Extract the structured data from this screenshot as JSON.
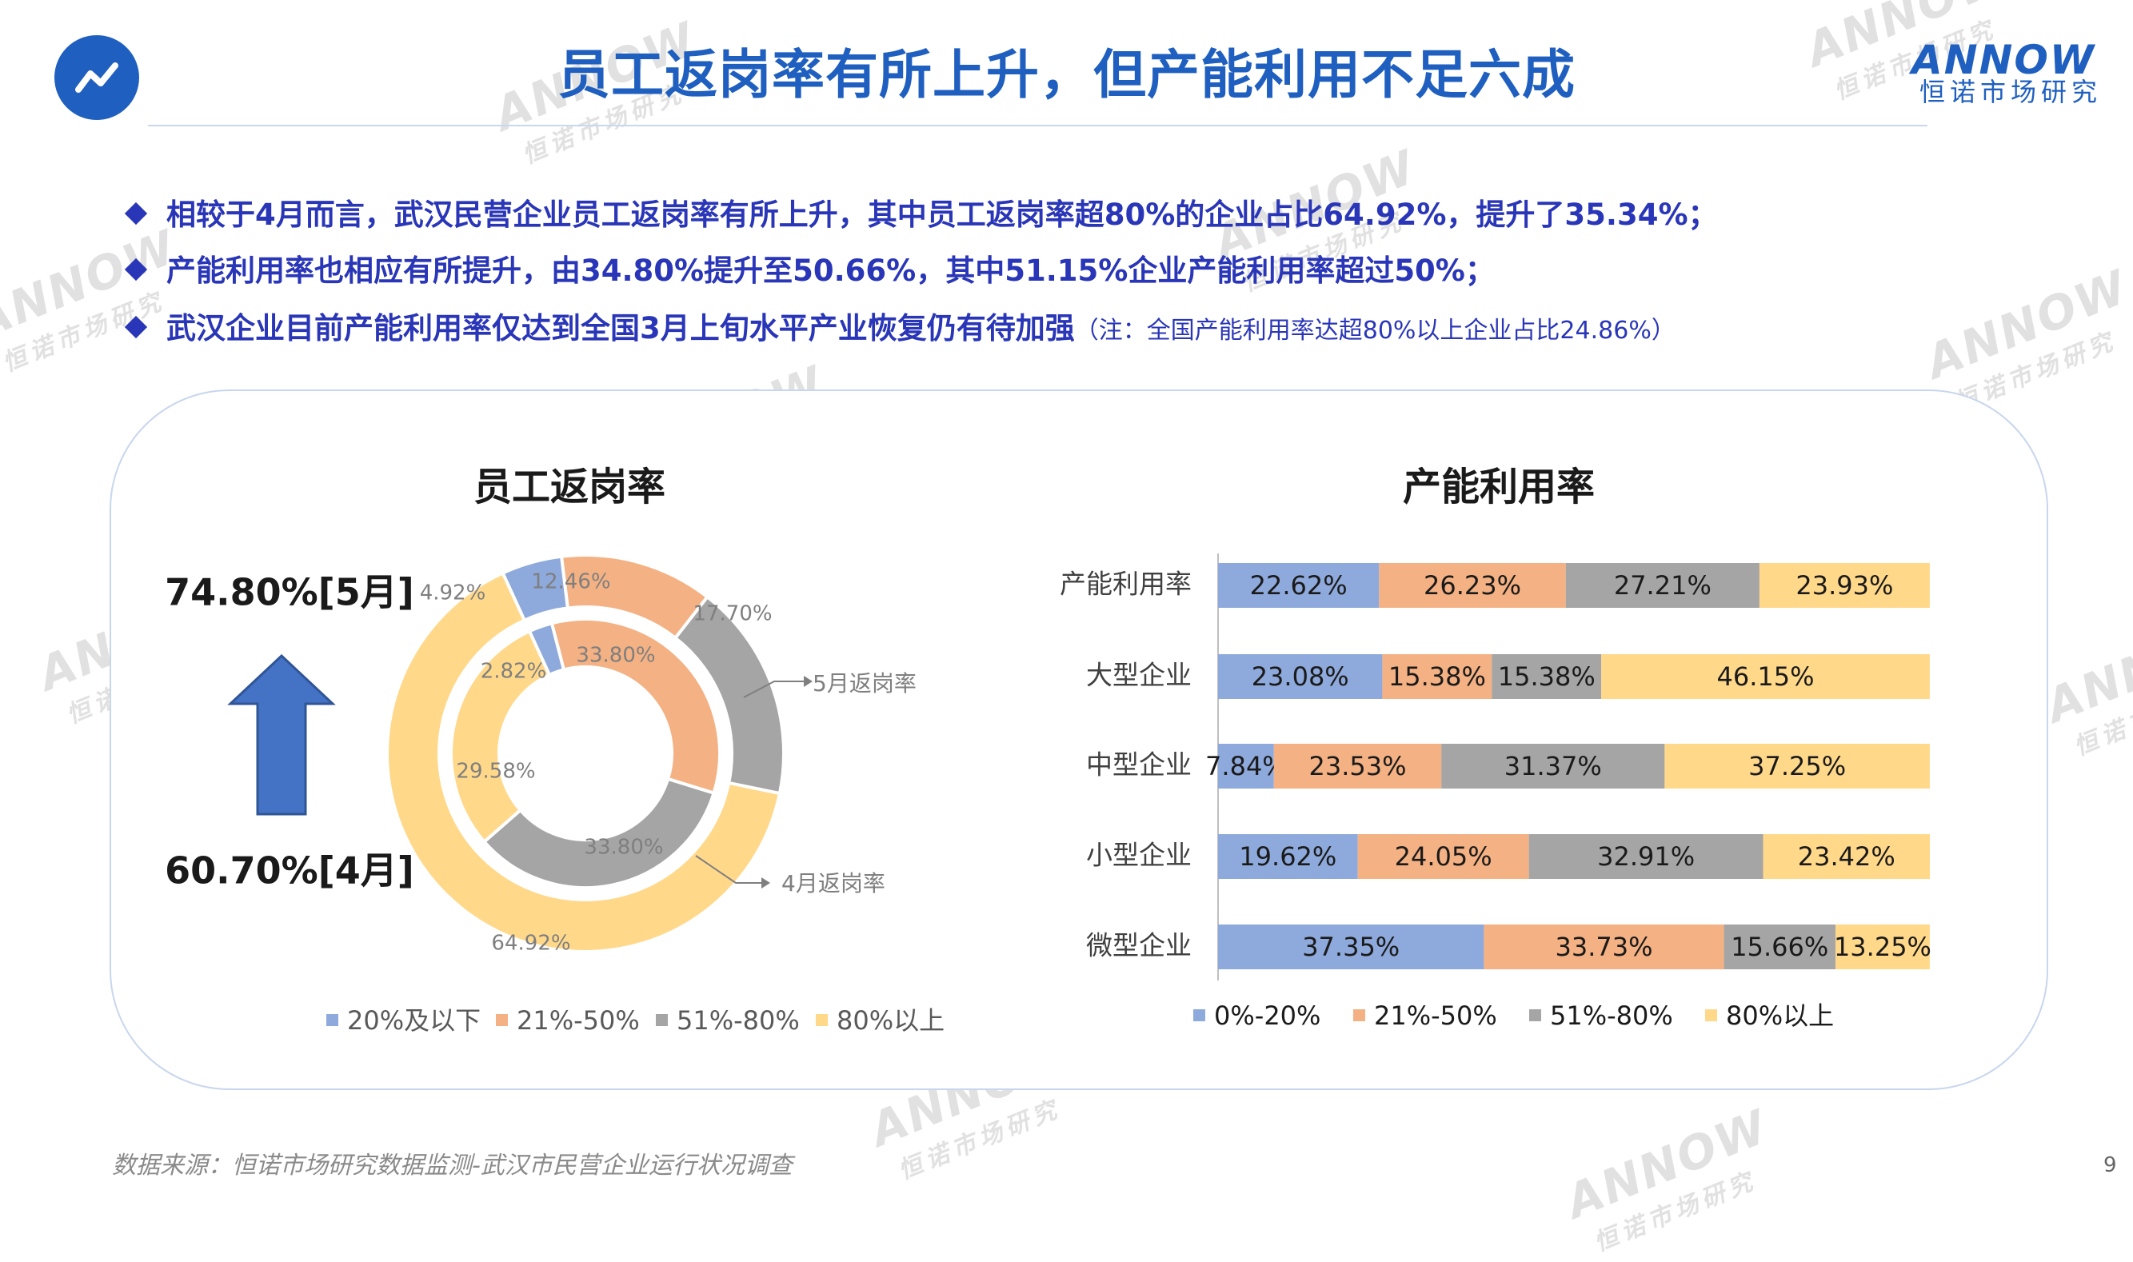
{
  "header": {
    "title": "员工返岗率有所上升，但产能利用不足六成",
    "brand_name": "ANNOW",
    "brand_sub": "恒诺市场研究",
    "watermark_name": "ANNOW",
    "watermark_sub": "恒诺市场研究",
    "logo_icon": "trend-line-icon"
  },
  "bullets": [
    {
      "text": "相较于4月而言，武汉民营企业员工返岗率有所上升，其中员工返岗率超80%的企业占比64.92%，提升了35.34%；",
      "note": ""
    },
    {
      "text": "产能利用率也相应有所提升，由34.80%提升至50.66%，其中51.15%企业产能利用率超过50%；",
      "note": ""
    },
    {
      "text": "武汉企业目前产能利用率仅达到全国3月上旬水平产业恢复仍有待加强",
      "note": "（注：全国产能利用率达超80%以上企业占比24.86%）"
    }
  ],
  "colors": {
    "title": "#1f5fbf",
    "bullet": "#2a36b8",
    "c1": "#8ea9db",
    "c2": "#f4b183",
    "c3": "#a5a5a5",
    "c4": "#ffd88a"
  },
  "footer": {
    "source": "数据来源：恒诺市场研究数据监测-武汉市民营企业运行状况调查",
    "page": "9"
  },
  "chart_data": [
    {
      "type": "pie",
      "subtype": "donut",
      "title": "员工返岗率",
      "series": [
        {
          "name": "5月返岗率",
          "ring": "outer",
          "values": [
            4.92,
            12.46,
            17.7,
            64.92
          ]
        },
        {
          "name": "4月返岗率",
          "ring": "inner",
          "values": [
            2.82,
            33.8,
            33.8,
            29.58
          ]
        }
      ],
      "categories": [
        "20%及以下",
        "21%-50%",
        "51%-80%",
        "80%以上"
      ],
      "data_labels_outer": [
        "4.92%",
        "12.46%",
        "17.70%",
        "64.92%"
      ],
      "data_labels_inner": [
        "2.82%",
        "33.80%",
        "33.80%",
        "29.58%"
      ],
      "annotations": {
        "top_value": "74.80%[5月]",
        "bottom_value": "60.70%[4月]",
        "arrow": "up-arrow-icon"
      },
      "legend": "bottom"
    },
    {
      "type": "bar",
      "subtype": "stacked-100-horizontal",
      "title": "产能利用率",
      "categories": [
        "产能利用率",
        "大型企业",
        "中型企业",
        "小型企业",
        "微型企业"
      ],
      "series": [
        {
          "name": "0%-20%",
          "values": [
            22.62,
            23.08,
            7.84,
            19.62,
            37.35
          ],
          "labels": [
            "22.62%",
            "23.08%",
            "7.84%",
            "19.62%",
            "37.35%"
          ]
        },
        {
          "name": "21%-50%",
          "values": [
            26.23,
            15.38,
            23.53,
            24.05,
            33.73
          ],
          "labels": [
            "26.23%",
            "15.38%",
            "23.53%",
            "24.05%",
            "33.73%"
          ]
        },
        {
          "name": "51%-80%",
          "values": [
            27.21,
            15.38,
            31.37,
            32.91,
            15.66
          ],
          "labels": [
            "27.21%",
            "15.38%",
            "31.37%",
            "32.91%",
            "15.66%"
          ]
        },
        {
          "name": "80%以上",
          "values": [
            23.93,
            46.15,
            37.25,
            23.42,
            13.25
          ],
          "labels": [
            "23.93%",
            "46.15%",
            "37.25%",
            "23.42%",
            "13.25%"
          ]
        }
      ],
      "xlim": [
        0,
        100
      ],
      "legend": "bottom"
    }
  ]
}
